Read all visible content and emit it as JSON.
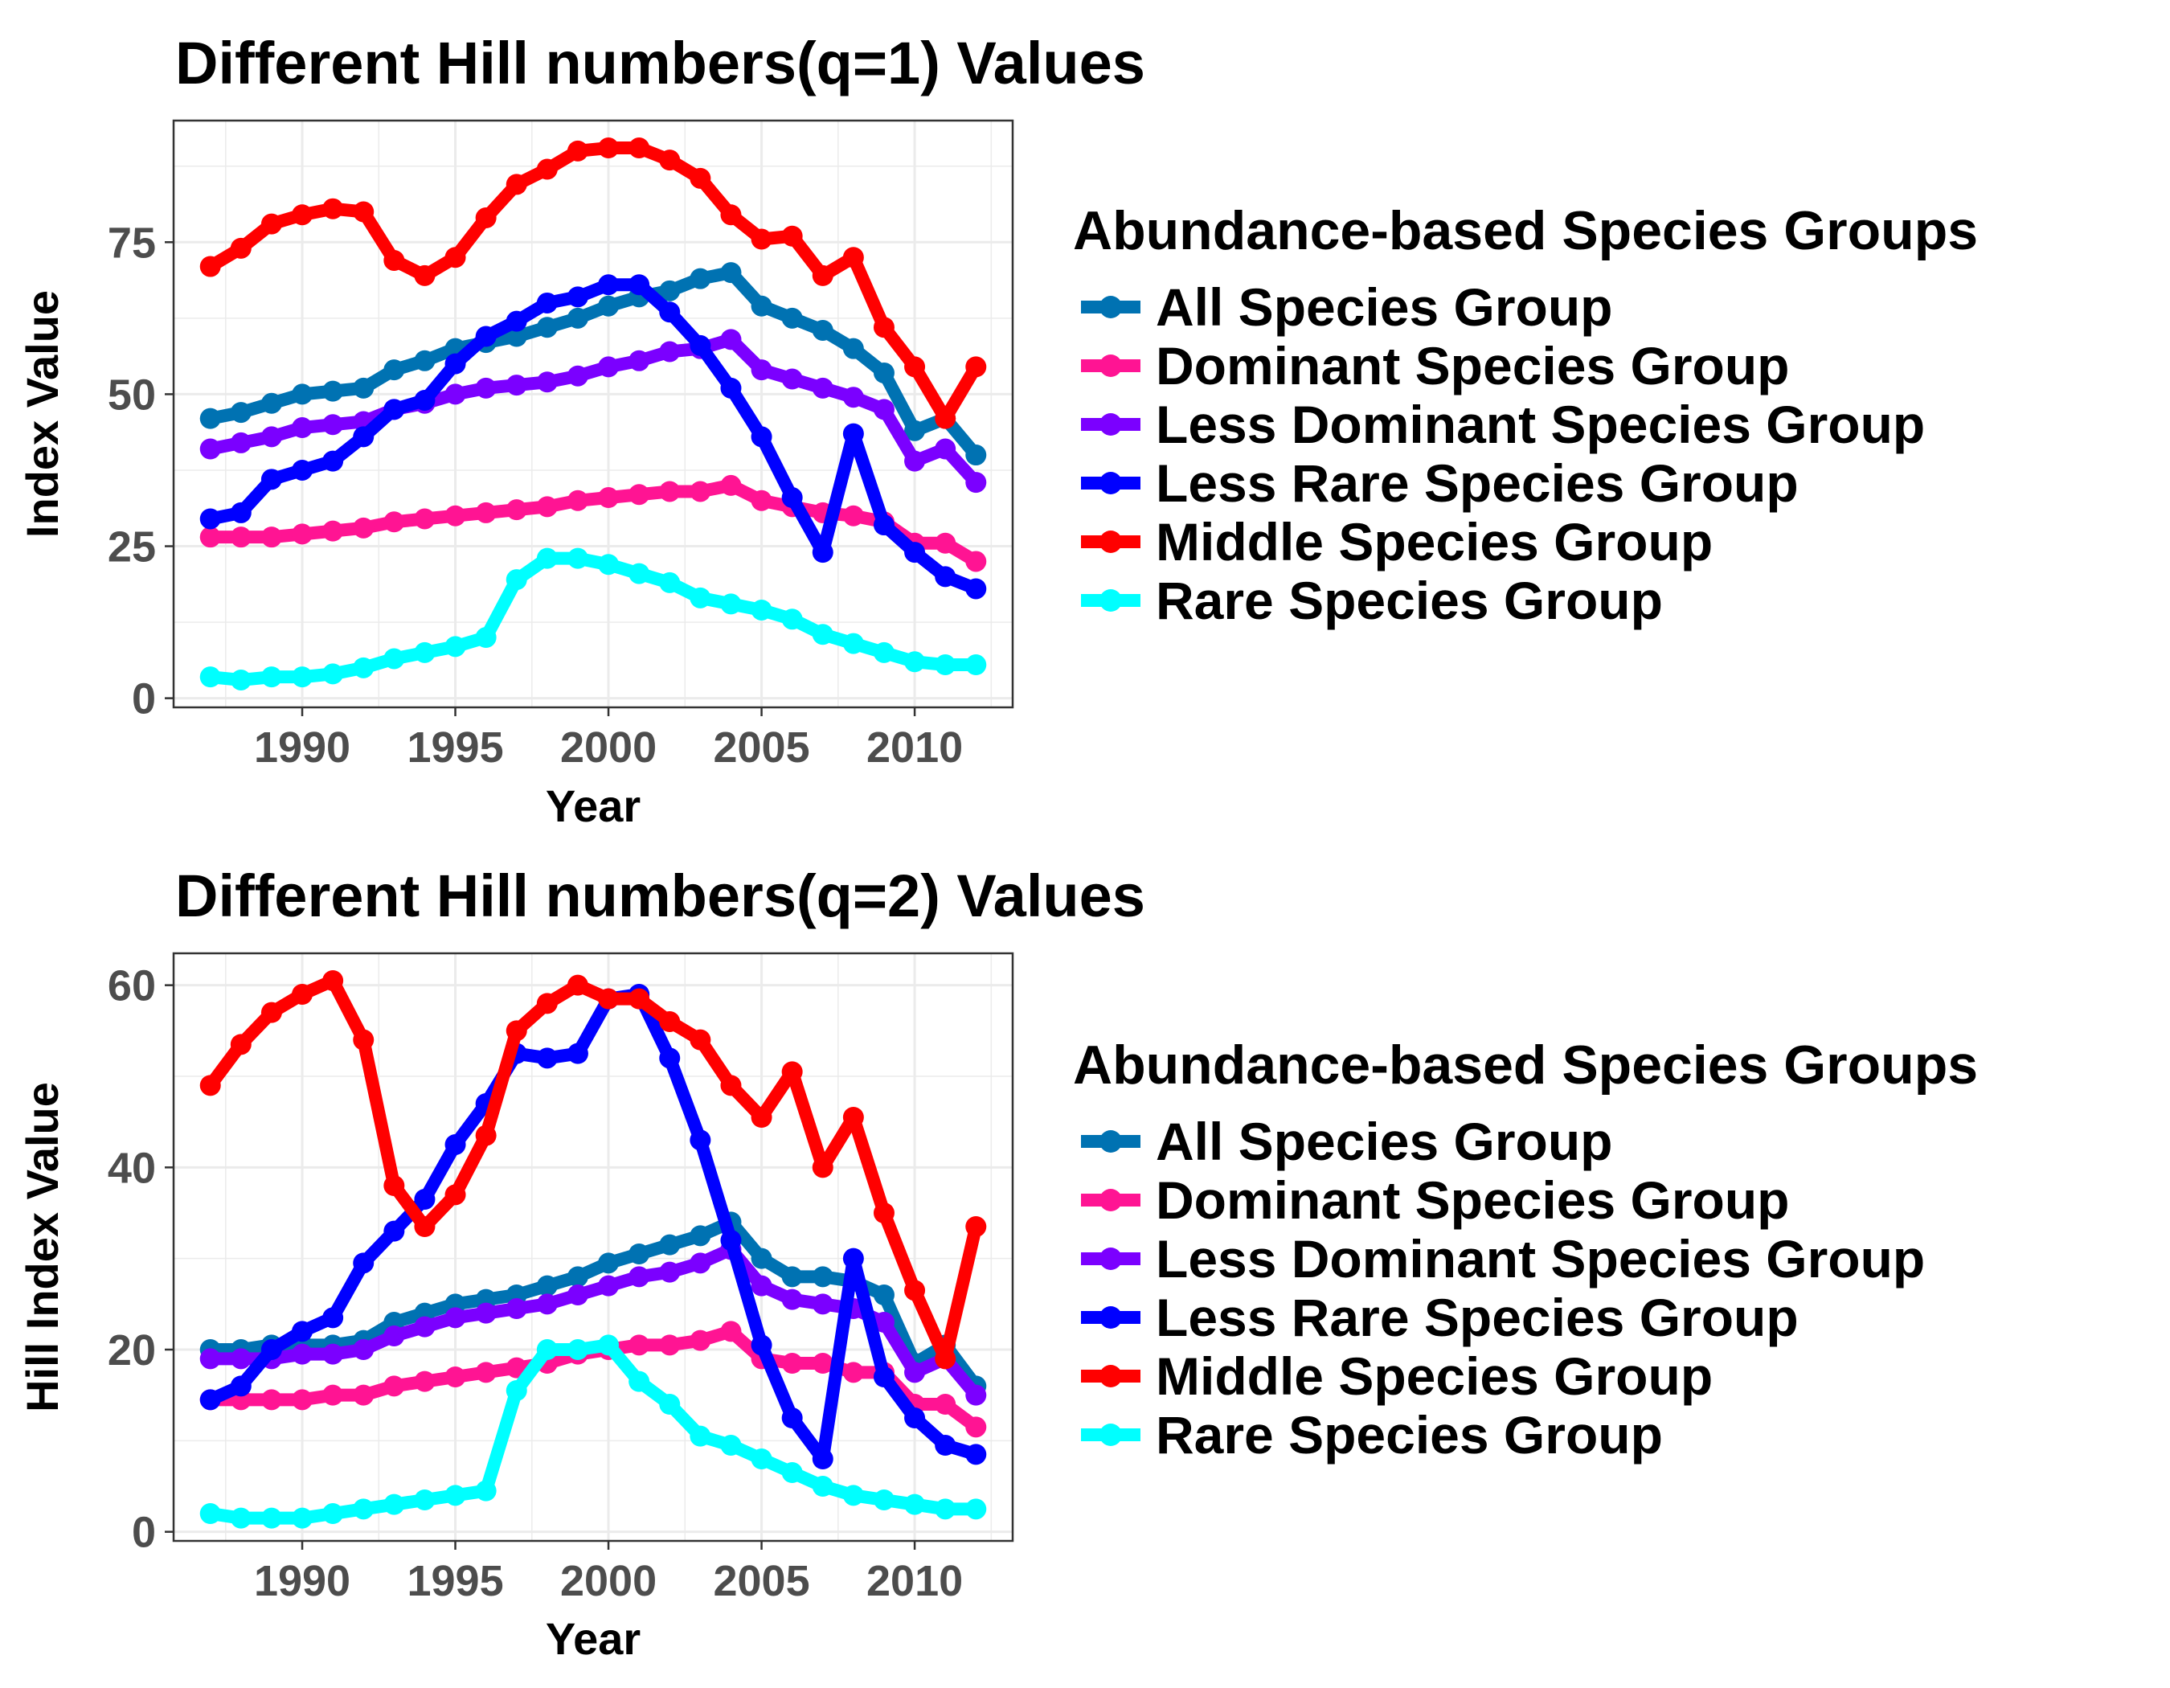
{
  "chart_data": [
    {
      "type": "line",
      "title": "Different Hill numbers(q=1) Values",
      "xlabel": "Year",
      "ylabel": "Index Value",
      "xlim": [
        1985.8,
        2013.2
      ],
      "ylim": [
        -1.5,
        95
      ],
      "x_ticks": [
        1990,
        1995,
        2000,
        2005,
        2010
      ],
      "y_ticks": [
        0,
        25,
        50,
        75
      ],
      "grid": true,
      "legend": {
        "title": "Abundance-based Species Groups",
        "placement": "right"
      },
      "x": [
        1987,
        1988,
        1989,
        1990,
        1991,
        1992,
        1993,
        1994,
        1995,
        1996,
        1997,
        1998,
        1999,
        2000,
        2001,
        2002,
        2003,
        2004,
        2005,
        2006,
        2007,
        2008,
        2009,
        2010,
        2011,
        2012
      ],
      "series": [
        {
          "name": "All Species Group",
          "color": "#0072b2",
          "values": [
            46,
            47,
            48.5,
            50,
            50.5,
            51,
            54,
            55.5,
            57.5,
            58.5,
            59.5,
            61,
            62.5,
            64.5,
            66,
            67,
            69,
            70,
            64.5,
            62.5,
            60.5,
            57.5,
            53.5,
            44,
            46,
            40
          ]
        },
        {
          "name": "Dominant Species Group",
          "color": "#ff1493",
          "values": [
            26.5,
            26.5,
            26.5,
            27,
            27.5,
            28,
            29,
            29.5,
            30,
            30.5,
            31,
            31.5,
            32.5,
            33,
            33.5,
            34,
            34,
            35,
            32.5,
            31.5,
            30.5,
            30,
            29,
            25.5,
            25.5,
            22.5
          ]
        },
        {
          "name": "Less Dominant Species Group",
          "color": "#7b00ff",
          "values": [
            41,
            42,
            43,
            44.5,
            45,
            45.5,
            47.5,
            48.5,
            50,
            51,
            51.5,
            52,
            53,
            54.5,
            55.5,
            57,
            57.5,
            59,
            54,
            52.5,
            51,
            49.5,
            47.5,
            39,
            41,
            35.5
          ]
        },
        {
          "name": "Less Rare Species Group",
          "color": "#0000ff",
          "values": [
            29.5,
            30.5,
            36,
            37.5,
            39,
            43,
            47.5,
            49,
            55,
            59.5,
            62,
            65,
            66,
            68,
            68,
            63.5,
            58,
            51,
            43,
            33,
            24,
            43.5,
            28.5,
            24,
            20,
            18
          ]
        },
        {
          "name": "Middle Species Group",
          "color": "#ff0000",
          "values": [
            71,
            74,
            78,
            79.5,
            80.5,
            80,
            72,
            69.5,
            72.5,
            79,
            84.5,
            87,
            90,
            90.5,
            90.5,
            88.5,
            85.5,
            79.5,
            75.5,
            76,
            69.5,
            72.5,
            61,
            54.5,
            46,
            54.5
          ]
        },
        {
          "name": "Rare Species Group",
          "color": "#00ffff",
          "values": [
            3.5,
            3,
            3.5,
            3.5,
            4,
            5,
            6.5,
            7.5,
            8.5,
            10,
            19.5,
            23,
            23,
            22,
            20.5,
            19,
            16.5,
            15.5,
            14.5,
            13,
            10.5,
            9,
            7.5,
            6,
            5.5,
            5.5
          ]
        }
      ]
    },
    {
      "type": "line",
      "title": "Different Hill numbers(q=2) Values",
      "xlabel": "Year",
      "ylabel": "Hill Index Value",
      "xlim": [
        1985.8,
        2013.2
      ],
      "ylim": [
        -1,
        63.5
      ],
      "x_ticks": [
        1990,
        1995,
        2000,
        2005,
        2010
      ],
      "y_ticks": [
        0,
        20,
        40,
        60
      ],
      "grid": true,
      "legend": {
        "title": "Abundance-based Species Groups",
        "placement": "right"
      },
      "x": [
        1987,
        1988,
        1989,
        1990,
        1991,
        1992,
        1993,
        1994,
        1995,
        1996,
        1997,
        1998,
        1999,
        2000,
        2001,
        2002,
        2003,
        2004,
        2005,
        2006,
        2007,
        2008,
        2009,
        2010,
        2011,
        2012
      ],
      "series": [
        {
          "name": "All Species Group",
          "color": "#0072b2",
          "values": [
            20,
            20,
            20.5,
            20.5,
            20.5,
            21,
            23,
            24,
            25,
            25.5,
            26,
            27,
            28,
            29.5,
            30.5,
            31.5,
            32.5,
            34,
            30,
            28,
            28,
            27.5,
            26,
            18.5,
            20.5,
            16
          ]
        },
        {
          "name": "Dominant Species Group",
          "color": "#ff1493",
          "values": [
            14.5,
            14.5,
            14.5,
            14.5,
            15,
            15,
            16,
            16.5,
            17,
            17.5,
            18,
            18.5,
            19.5,
            20,
            20.5,
            20.5,
            21,
            22,
            19,
            18.5,
            18.5,
            17.5,
            17.5,
            14,
            14,
            11.5
          ]
        },
        {
          "name": "Less Dominant Species Group",
          "color": "#7b00ff",
          "values": [
            19,
            19,
            19,
            19.5,
            19.5,
            20,
            21.5,
            22.5,
            23.5,
            24,
            24.5,
            25,
            26,
            27,
            28,
            28.5,
            29.5,
            31,
            27,
            25.5,
            25,
            24.5,
            23,
            17.5,
            19,
            15
          ]
        },
        {
          "name": "Less Rare Species Group",
          "color": "#0000ff",
          "values": [
            14.5,
            16,
            20,
            22,
            23.5,
            29.5,
            33,
            36.5,
            42.5,
            47,
            52.5,
            52,
            52.5,
            58.5,
            59,
            52,
            43,
            32,
            20.5,
            12.5,
            8,
            30,
            17,
            12.5,
            9.5,
            8.5
          ]
        },
        {
          "name": "Middle Species Group",
          "color": "#ff0000",
          "values": [
            49,
            53.5,
            57,
            59,
            60.5,
            54,
            38,
            33.5,
            37,
            43.5,
            55,
            58,
            60,
            58.5,
            58.5,
            56,
            54,
            49,
            45.5,
            50.5,
            40,
            45.5,
            35,
            26.5,
            19,
            33.5
          ]
        },
        {
          "name": "Rare Species Group",
          "color": "#00ffff",
          "values": [
            2,
            1.5,
            1.5,
            1.5,
            2,
            2.5,
            3,
            3.5,
            4,
            4.5,
            15.5,
            20,
            20,
            20.5,
            16.5,
            14,
            10.5,
            9.5,
            8,
            6.5,
            5,
            4,
            3.5,
            3,
            2.5,
            2.5
          ]
        }
      ]
    }
  ]
}
